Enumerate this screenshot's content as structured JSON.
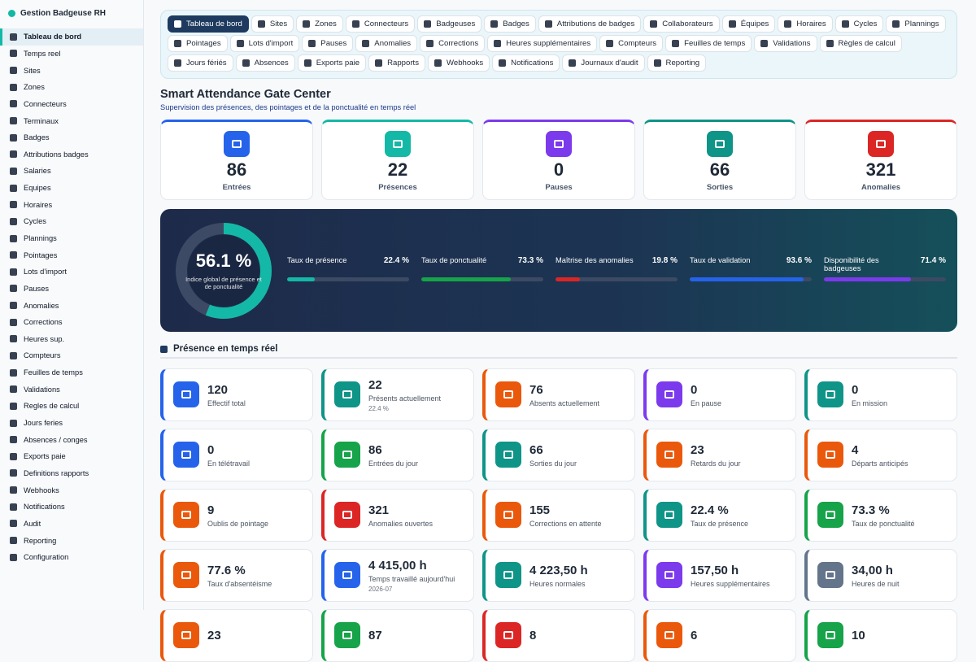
{
  "sidebar": {
    "title": "Gestion Badgeuse RH",
    "items": [
      "Tableau de bord",
      "Temps reel",
      "Sites",
      "Zones",
      "Connecteurs",
      "Terminaux",
      "Badges",
      "Attributions badges",
      "Salaries",
      "Equipes",
      "Horaires",
      "Cycles",
      "Plannings",
      "Pointages",
      "Lots d'import",
      "Pauses",
      "Anomalies",
      "Corrections",
      "Heures sup.",
      "Compteurs",
      "Feuilles de temps",
      "Validations",
      "Regles de calcul",
      "Jours feries",
      "Absences / conges",
      "Exports paie",
      "Definitions rapports",
      "Webhooks",
      "Notifications",
      "Audit",
      "Reporting",
      "Configuration"
    ]
  },
  "nav": {
    "tabs": [
      "Tableau de bord",
      "Sites",
      "Zones",
      "Connecteurs",
      "Badgeuses",
      "Badges",
      "Attributions de badges",
      "Collaborateurs",
      "Équipes",
      "Horaires",
      "Cycles",
      "Plannings",
      "Pointages",
      "Lots d'import",
      "Pauses",
      "Anomalies",
      "Corrections",
      "Heures supplémentaires",
      "Compteurs",
      "Feuilles de temps",
      "Validations",
      "Règles de calcul",
      "Jours fériés",
      "Absences",
      "Exports paie",
      "Rapports",
      "Webhooks",
      "Notifications",
      "Journaux d'audit",
      "Reporting"
    ]
  },
  "header": {
    "title": "Smart Attendance Gate Center",
    "subtitle": "Supervision des présences, des pointages et de la ponctualité en temps réel"
  },
  "kpis": [
    {
      "value": 86,
      "label": "Entrées",
      "color": "#2563eb"
    },
    {
      "value": 22,
      "label": "Présences",
      "color": "#14b8a6"
    },
    {
      "value": 0,
      "label": "Pauses",
      "color": "#7c3aed"
    },
    {
      "value": 66,
      "label": "Sorties",
      "color": "#0f9488"
    },
    {
      "value": 321,
      "label": "Anomalies",
      "color": "#dc2626"
    }
  ],
  "summary": {
    "gauge": {
      "value": 56.1,
      "value_label": "56.1 %",
      "label": "Indice global de présence et de ponctualité"
    },
    "bars": [
      {
        "label": "Taux de présence",
        "value": 22.4,
        "value_label": "22.4 %",
        "color": "#14b8a6"
      },
      {
        "label": "Taux de ponctualité",
        "value": 73.3,
        "value_label": "73.3 %",
        "color": "#16a34a"
      },
      {
        "label": "Maîtrise des anomalies",
        "value": 19.8,
        "value_label": "19.8 %",
        "color": "#dc2626"
      },
      {
        "label": "Taux de validation",
        "value": 93.6,
        "value_label": "93.6 %",
        "color": "#2563eb"
      },
      {
        "label": "Disponibilité des badgeuses",
        "value": 71.4,
        "value_label": "71.4 %",
        "color": "#7c3aed"
      }
    ]
  },
  "section": {
    "title": "Présence en temps réel"
  },
  "cards": [
    {
      "value": 120,
      "label": "Effectif total",
      "color": "#2563eb"
    },
    {
      "value": 22,
      "label": "Présents actuellement",
      "sub": "22.4 %",
      "color": "#0f9488"
    },
    {
      "value": 76,
      "label": "Absents actuellement",
      "color": "#ea580c"
    },
    {
      "value": 0,
      "label": "En pause",
      "color": "#7c3aed"
    },
    {
      "value": 0,
      "label": "En mission",
      "color": "#0f9488"
    },
    {
      "value": 0,
      "label": "En télétravail",
      "color": "#2563eb"
    },
    {
      "value": 86,
      "label": "Entrées du jour",
      "color": "#16a34a"
    },
    {
      "value": 66,
      "label": "Sorties du jour",
      "color": "#0f9488"
    },
    {
      "value": 23,
      "label": "Retards du jour",
      "color": "#ea580c"
    },
    {
      "value": 4,
      "label": "Départs anticipés",
      "color": "#ea580c"
    },
    {
      "value": 9,
      "label": "Oublis de pointage",
      "color": "#ea580c"
    },
    {
      "value": 321,
      "label": "Anomalies ouvertes",
      "color": "#dc2626"
    },
    {
      "value": 155,
      "label": "Corrections en attente",
      "color": "#ea580c"
    },
    {
      "value": "22.4 %",
      "label": "Taux de présence",
      "color": "#0f9488"
    },
    {
      "value": "73.3 %",
      "label": "Taux de ponctualité",
      "color": "#16a34a"
    },
    {
      "value": "77.6 %",
      "label": "Taux d'absentéisme",
      "color": "#ea580c"
    },
    {
      "value": "4 415,00 h",
      "label": "Temps travaillé aujourd'hui",
      "sub": "2026-07",
      "color": "#2563eb"
    },
    {
      "value": "4 223,50 h",
      "label": "Heures normales",
      "color": "#0f9488"
    },
    {
      "value": "157,50 h",
      "label": "Heures supplémentaires",
      "color": "#7c3aed"
    },
    {
      "value": "34,00 h",
      "label": "Heures de nuit",
      "color": "#64748b"
    },
    {
      "value": 23,
      "color": "#ea580c"
    },
    {
      "value": 87,
      "color": "#16a34a"
    },
    {
      "value": 8,
      "color": "#dc2626"
    },
    {
      "value": 6,
      "color": "#ea580c"
    },
    {
      "value": 10,
      "color": "#16a34a"
    }
  ]
}
